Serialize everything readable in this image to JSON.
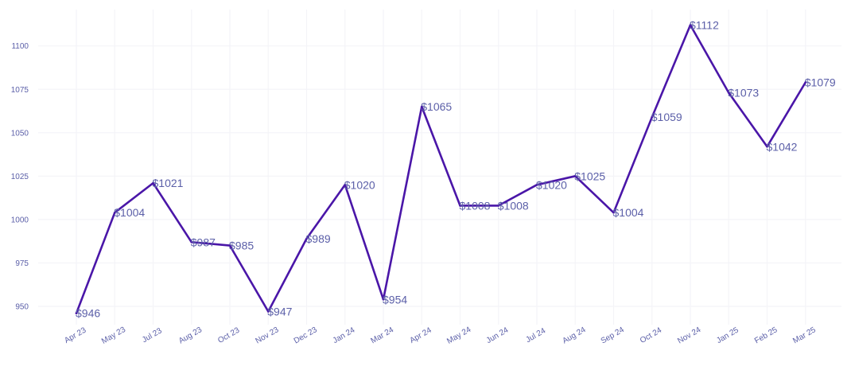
{
  "chart_data": {
    "type": "line",
    "title": "",
    "xlabel": "",
    "ylabel": "",
    "categories": [
      "Apr 23",
      "May 23",
      "Jul 23",
      "Aug 23",
      "Oct 23",
      "Nov 23",
      "Dec 23",
      "Jan 24",
      "Mar 24",
      "Apr 24",
      "May 24",
      "Jun 24",
      "Jul 24",
      "Aug 24",
      "Sep 24",
      "Oct 24",
      "Nov 24",
      "Jan 25",
      "Feb 25",
      "Mar 25"
    ],
    "values": [
      946,
      1004,
      1021,
      987,
      985,
      947,
      989,
      1020,
      954,
      1065,
      1008,
      1008,
      1020,
      1025,
      1004,
      1059,
      1112,
      1073,
      1042,
      1079
    ],
    "data_labels": [
      "$946",
      "$1004",
      "$1021",
      "$987",
      "$985",
      "$947",
      "$989",
      "$1020",
      "$954",
      "$1065",
      "$1008",
      "$1008",
      "$1020",
      "$1025",
      "$1004",
      "$1059",
      "$1112",
      "$1073",
      "$1042",
      "$1079"
    ],
    "yticks": [
      950,
      975,
      1000,
      1025,
      1050,
      1075,
      1100
    ],
    "ylim": [
      940,
      1120
    ],
    "grid": true,
    "legend": "none",
    "line_color": "#4a16a8"
  }
}
